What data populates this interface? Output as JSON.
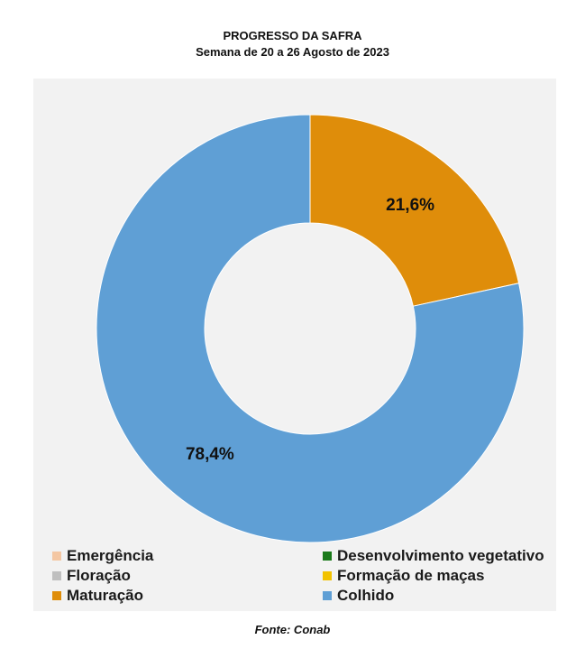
{
  "chart_data": {
    "type": "pie",
    "title": "PROGRESSO DA SAFRA",
    "subtitle": "Semana de 20 a 26 Agosto de 2023",
    "categories": [
      "Emergência",
      "Desenvolvimento vegetativo",
      "Floração",
      "Formação de maças",
      "Maturação",
      "Colhido"
    ],
    "values": [
      0,
      0,
      0,
      0,
      21.6,
      78.4
    ],
    "data_labels": [
      "",
      "",
      "",
      "",
      "21,6%",
      "78,4%"
    ],
    "colors": [
      "#f4c7a3",
      "#1a7a1a",
      "#bfbfbf",
      "#f2c200",
      "#df8d0a",
      "#5f9fd5"
    ],
    "donut": true,
    "legend_position": "bottom",
    "source": "Fonte: Conab"
  }
}
